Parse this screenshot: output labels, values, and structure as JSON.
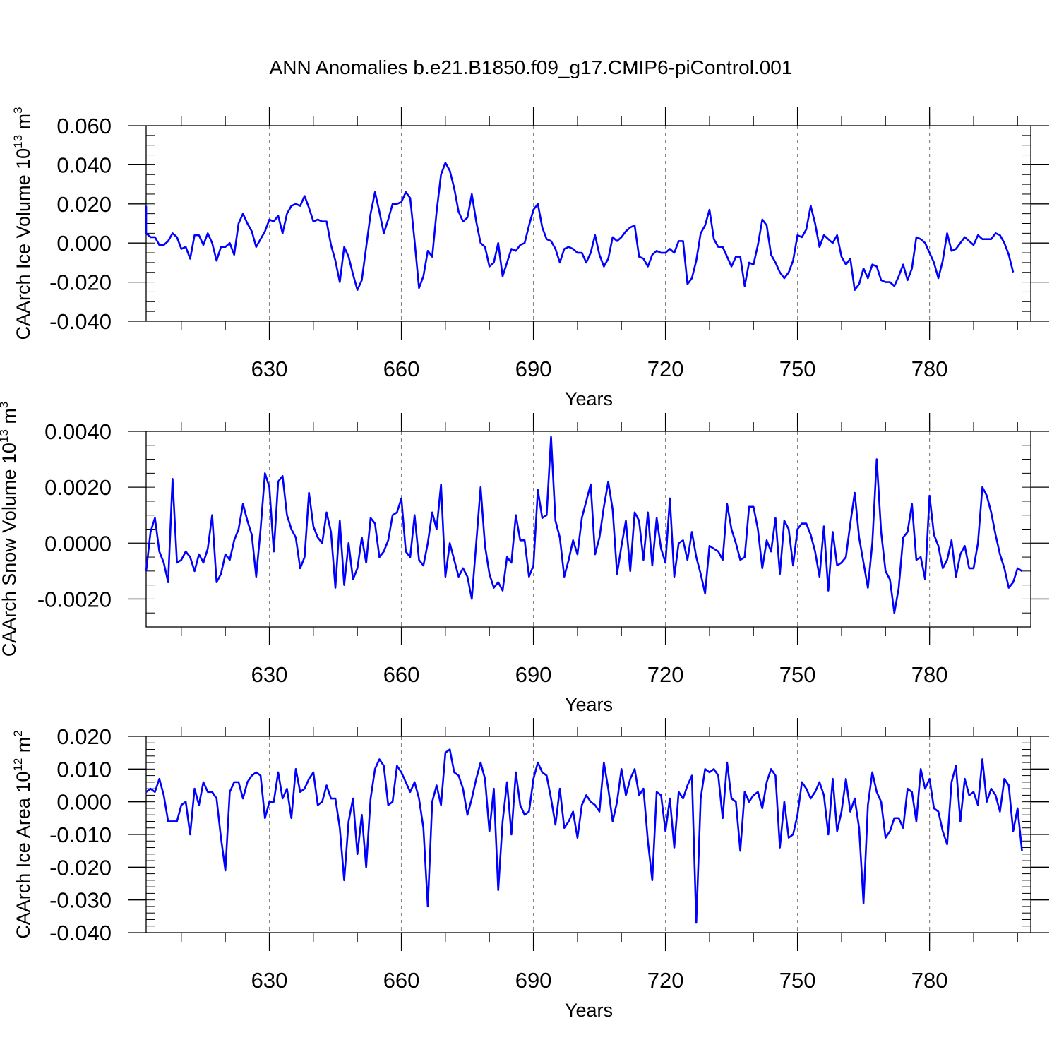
{
  "colors": {
    "line": "#0000ff",
    "axis": "#000000",
    "grid": "#888888"
  },
  "title": "ANN Anomalies b.e21.B1850.f09_g17.CMIP6-piControl.001",
  "chart_data": [
    {
      "type": "line",
      "ylabel_main": "CAArch Ice Volume 10",
      "ylabel_exp": "13",
      "ylabel_unit": " m",
      "ylabel_unit_exp": "3",
      "xlabel": "Years",
      "xlim": [
        602,
        803
      ],
      "ylim": [
        -0.04,
        0.06
      ],
      "yticks": [
        -0.04,
        -0.02,
        0.0,
        0.02,
        0.04,
        0.06
      ],
      "ytick_labels": [
        "-0.040",
        "-0.020",
        "0.000",
        "0.020",
        "0.040",
        "0.060"
      ],
      "yminor_step": 0.005,
      "xticks": [
        630,
        660,
        690,
        720,
        750,
        780
      ],
      "xtick_labels": [
        "630",
        "660",
        "690",
        "720",
        "750",
        "780"
      ],
      "xminor_step": 10,
      "grid_x": [
        630,
        660,
        690,
        720,
        750,
        780
      ],
      "x_start": 600,
      "y": [
        0.019,
        0.011,
        0.005,
        0.003,
        0.003,
        -0.001,
        -0.001,
        0.001,
        0.005,
        0.003,
        -0.003,
        -0.002,
        -0.008,
        0.004,
        0.004,
        -0.001,
        0.005,
        0.0,
        -0.009,
        -0.002,
        -0.002,
        0.0,
        -0.006,
        0.01,
        0.015,
        0.01,
        0.006,
        -0.002,
        0.002,
        0.006,
        0.012,
        0.011,
        0.014,
        0.005,
        0.015,
        0.019,
        0.02,
        0.019,
        0.024,
        0.018,
        0.011,
        0.012,
        0.011,
        0.011,
        -0.001,
        -0.009,
        -0.02,
        -0.002,
        -0.007,
        -0.016,
        -0.024,
        -0.019,
        -0.002,
        0.015,
        0.026,
        0.016,
        0.005,
        0.012,
        0.02,
        0.02,
        0.021,
        0.026,
        0.023,
        0.001,
        -0.023,
        -0.017,
        -0.004,
        -0.007,
        0.016,
        0.035,
        0.041,
        0.037,
        0.028,
        0.016,
        0.011,
        0.013,
        0.025,
        0.011,
        0.0,
        -0.002,
        -0.012,
        -0.01,
        0.0,
        -0.017,
        -0.01,
        -0.003,
        -0.004,
        -0.001,
        0.0,
        0.009,
        0.017,
        0.02,
        0.008,
        0.002,
        0.001,
        -0.003,
        -0.01,
        -0.003,
        -0.002,
        -0.003,
        -0.005,
        -0.005,
        -0.01,
        -0.005,
        0.004,
        -0.006,
        -0.012,
        -0.008,
        0.003,
        0.001,
        0.003,
        0.006,
        0.008,
        0.009,
        -0.007,
        -0.008,
        -0.012,
        -0.006,
        -0.004,
        -0.005,
        -0.005,
        -0.003,
        -0.005,
        0.001,
        0.001,
        -0.021,
        -0.018,
        -0.009,
        0.005,
        0.009,
        0.017,
        0.002,
        -0.002,
        -0.002,
        -0.007,
        -0.012,
        -0.007,
        -0.007,
        -0.022,
        -0.01,
        -0.011,
        -0.001,
        0.012,
        0.009,
        -0.006,
        -0.01,
        -0.015,
        -0.018,
        -0.015,
        -0.009,
        0.004,
        0.003,
        0.007,
        0.019,
        0.01,
        -0.002,
        0.004,
        0.002,
        0.0,
        0.004,
        -0.007,
        -0.011,
        -0.008,
        -0.024,
        -0.021,
        -0.013,
        -0.018,
        -0.011,
        -0.012,
        -0.019,
        -0.02,
        -0.02,
        -0.022,
        -0.017,
        -0.011,
        -0.019,
        -0.013,
        0.003,
        0.002,
        0.0,
        -0.005,
        -0.01,
        -0.018,
        -0.009,
        0.005,
        -0.004,
        -0.003,
        0.0,
        0.003,
        0.001,
        -0.001,
        0.004,
        0.002,
        0.002,
        0.002,
        0.005,
        0.004,
        0.0,
        -0.006,
        -0.015
      ]
    },
    {
      "type": "line",
      "ylabel_main": "CAArch Snow Volume 10",
      "ylabel_exp": "13",
      "ylabel_unit": " m",
      "ylabel_unit_exp": "3",
      "xlabel": "Years",
      "xlim": [
        602,
        803
      ],
      "ylim": [
        -0.003,
        0.004
      ],
      "yticks": [
        -0.002,
        0.0,
        0.002,
        0.004
      ],
      "ytick_labels": [
        "-0.0020",
        "0.0000",
        "0.0020",
        "0.0040"
      ],
      "yminor_step": 0.0005,
      "xticks": [
        630,
        660,
        690,
        720,
        750,
        780
      ],
      "xtick_labels": [
        "630",
        "660",
        "690",
        "720",
        "750",
        "780"
      ],
      "xminor_step": 10,
      "grid_x": [
        630,
        660,
        690,
        720,
        750,
        780
      ],
      "x_start": 602,
      "y": [
        -0.001,
        0.0004,
        0.0009,
        -0.0003,
        -0.0007,
        -0.0014,
        0.0023,
        -0.0007,
        -0.0006,
        -0.0003,
        -0.0005,
        -0.001,
        -0.0004,
        -0.0007,
        -0.0002,
        0.001,
        -0.0014,
        -0.0011,
        -0.0004,
        -0.0006,
        0.0001,
        0.0005,
        0.0014,
        0.0008,
        0.0003,
        -0.0012,
        0.0005,
        0.0025,
        0.002,
        -0.0003,
        0.0022,
        0.0024,
        0.001,
        0.0005,
        0.0002,
        -0.0009,
        -0.0005,
        0.0018,
        0.0006,
        0.0002,
        0.0,
        0.0011,
        0.0004,
        -0.0016,
        0.0008,
        -0.0015,
        0.0,
        -0.0013,
        -0.0009,
        0.0002,
        -0.0007,
        0.0009,
        0.0007,
        -0.0005,
        -0.0003,
        0.0001,
        0.001,
        0.0011,
        0.0016,
        -0.0003,
        -0.0005,
        0.001,
        -0.0006,
        -0.0008,
        0.0,
        0.0011,
        0.0005,
        0.0021,
        -0.0012,
        0.0,
        -0.0006,
        -0.0012,
        -0.0009,
        -0.0012,
        -0.002,
        0.0,
        0.002,
        -0.0001,
        -0.0011,
        -0.0016,
        -0.0014,
        -0.0017,
        -0.0005,
        -0.0007,
        0.001,
        0.0001,
        0.0001,
        -0.0012,
        -0.0008,
        0.0019,
        0.0009,
        0.001,
        0.0038,
        0.0008,
        0.0002,
        -0.0012,
        -0.0006,
        0.0001,
        -0.0004,
        0.0009,
        0.0015,
        0.0021,
        -0.0004,
        0.0002,
        0.0013,
        0.0022,
        0.0012,
        -0.0011,
        -0.0001,
        0.0008,
        -0.001,
        0.0011,
        0.0008,
        -0.0006,
        0.0011,
        -0.0008,
        0.0009,
        -0.0002,
        -0.0007,
        0.0016,
        -0.0012,
        0.0,
        0.0001,
        -0.0006,
        0.0004,
        -0.0005,
        -0.0011,
        -0.0018,
        -0.0001,
        -0.0002,
        -0.0003,
        -0.0006,
        0.0014,
        0.0005,
        0.0,
        -0.0006,
        -0.0005,
        0.0013,
        0.0013,
        0.0005,
        -0.0009,
        0.0001,
        -0.0003,
        0.0009,
        -0.0011,
        0.0008,
        0.0005,
        -0.0008,
        0.0005,
        0.0007,
        0.0007,
        0.0003,
        -0.0003,
        -0.0012,
        0.0006,
        -0.0017,
        0.0004,
        -0.0008,
        -0.0007,
        -0.0005,
        0.0007,
        0.0018,
        0.0002,
        -0.0007,
        -0.0016,
        0.0,
        0.003,
        0.0004,
        -0.001,
        -0.0013,
        -0.0025,
        -0.0016,
        0.0002,
        0.0004,
        0.0014,
        -0.0006,
        -0.0005,
        -0.0013,
        0.0017,
        0.0003,
        -0.0001,
        -0.0009,
        -0.0006,
        0.0001,
        -0.0012,
        -0.0004,
        -0.0001,
        -0.0009,
        -0.0009,
        0.0,
        0.002,
        0.0017,
        0.0011,
        0.0003,
        -0.0004,
        -0.0009,
        -0.0016,
        -0.0014,
        -0.0009,
        -0.001
      ]
    },
    {
      "type": "line",
      "ylabel_main": "CAArch Ice Area 10",
      "ylabel_exp": "12",
      "ylabel_unit": " m",
      "ylabel_unit_exp": "2",
      "xlabel": "Years",
      "xlim": [
        602,
        803
      ],
      "ylim": [
        -0.04,
        0.02
      ],
      "yticks": [
        -0.04,
        -0.03,
        -0.02,
        -0.01,
        0.0,
        0.01,
        0.02
      ],
      "ytick_labels": [
        "-0.040",
        "-0.030",
        "-0.020",
        "-0.010",
        "0.000",
        "0.010",
        "0.020"
      ],
      "yminor_step": 0.002,
      "xticks": [
        630,
        660,
        690,
        720,
        750,
        780
      ],
      "xtick_labels": [
        "630",
        "660",
        "690",
        "720",
        "750",
        "780"
      ],
      "xminor_step": 10,
      "grid_x": [
        630,
        660,
        690,
        720,
        750,
        780
      ],
      "x_start": 602,
      "y": [
        0.003,
        0.004,
        0.003,
        0.007,
        0.002,
        -0.006,
        -0.006,
        -0.006,
        -0.001,
        0.0,
        -0.01,
        0.004,
        -0.001,
        0.006,
        0.003,
        0.003,
        0.001,
        -0.011,
        -0.021,
        0.003,
        0.006,
        0.006,
        0.001,
        0.006,
        0.008,
        0.009,
        0.008,
        -0.005,
        0.0,
        0.0,
        0.009,
        0.001,
        0.004,
        -0.005,
        0.01,
        0.003,
        0.004,
        0.007,
        0.009,
        -0.001,
        0.0,
        0.005,
        0.001,
        0.001,
        -0.008,
        -0.024,
        -0.006,
        0.001,
        -0.016,
        -0.004,
        -0.02,
        0.001,
        0.01,
        0.013,
        0.011,
        -0.001,
        0.0,
        0.011,
        0.009,
        0.006,
        0.003,
        0.006,
        0.001,
        -0.008,
        -0.032,
        0.0,
        0.005,
        -0.001,
        0.015,
        0.016,
        0.009,
        0.008,
        0.004,
        -0.004,
        0.001,
        0.007,
        0.012,
        0.007,
        -0.009,
        0.004,
        -0.027,
        -0.006,
        0.006,
        -0.01,
        0.009,
        -0.001,
        -0.004,
        -0.003,
        0.007,
        0.012,
        0.009,
        0.008,
        0.001,
        -0.007,
        0.004,
        -0.008,
        -0.006,
        -0.003,
        -0.011,
        -0.001,
        0.002,
        0.0,
        -0.001,
        -0.003,
        0.012,
        0.004,
        -0.006,
        0.0,
        0.01,
        0.002,
        0.007,
        0.01,
        0.002,
        0.004,
        -0.012,
        -0.024,
        0.003,
        0.002,
        -0.009,
        0.001,
        -0.014,
        0.003,
        0.001,
        0.005,
        0.008,
        -0.037,
        0.001,
        0.01,
        0.009,
        0.01,
        0.008,
        -0.005,
        0.012,
        0.001,
        0.0,
        -0.015,
        0.003,
        0.0,
        0.002,
        0.003,
        -0.002,
        0.006,
        0.01,
        0.008,
        -0.014,
        0.0,
        -0.011,
        -0.01,
        -0.004,
        0.006,
        0.004,
        0.001,
        0.003,
        0.006,
        0.002,
        -0.01,
        0.007,
        -0.009,
        -0.003,
        0.007,
        -0.003,
        0.001,
        -0.008,
        -0.031,
        -0.001,
        0.009,
        0.003,
        0.0,
        -0.011,
        -0.009,
        -0.005,
        -0.005,
        -0.008,
        0.004,
        0.003,
        -0.006,
        0.01,
        0.004,
        0.007,
        -0.002,
        -0.003,
        -0.009,
        -0.013,
        0.006,
        0.011,
        -0.006,
        0.007,
        0.002,
        0.003,
        -0.001,
        0.013,
        0.0,
        0.004,
        0.002,
        -0.003,
        0.007,
        0.005,
        -0.009,
        -0.002,
        -0.015
      ]
    }
  ]
}
